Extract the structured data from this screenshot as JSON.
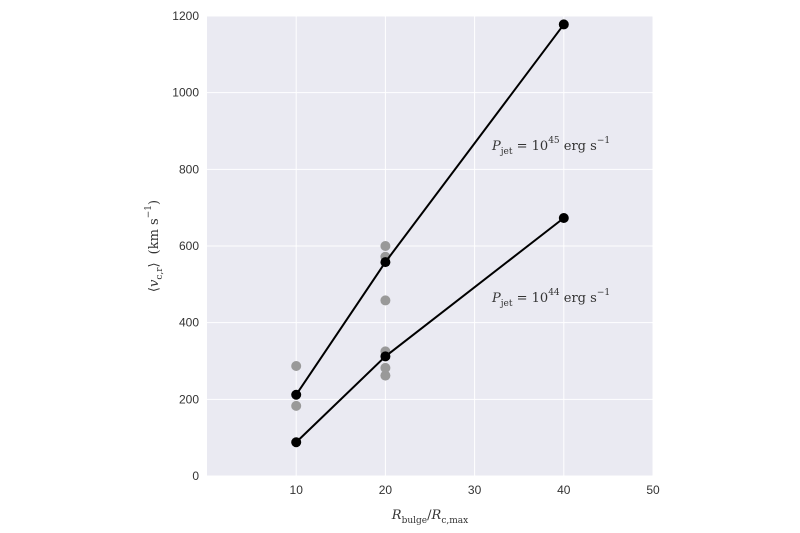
{
  "chart_data": {
    "type": "scatter",
    "xlabel": {
      "main": "R",
      "sub1": "bulge",
      "sep": "/",
      "main2": "R",
      "sub2": "c,max"
    },
    "ylabel": {
      "open": "⟨",
      "main": "v",
      "sub": "c,r",
      "close": "⟩",
      "units": "(km s",
      "units_sup": "−1",
      "units_close": ")"
    },
    "xlim": [
      0,
      50
    ],
    "ylim": [
      0,
      1200
    ],
    "xticks": [
      10,
      20,
      30,
      40,
      50
    ],
    "yticks": [
      0,
      200,
      400,
      600,
      800,
      1000,
      1200
    ],
    "grid": true,
    "series": [
      {
        "label": {
          "main": "P",
          "sub": "jet",
          "eq": " = 10",
          "exp": "45",
          "units": " erg s",
          "units_sup": "−1"
        },
        "fit_x": [
          10,
          20,
          40
        ],
        "fit_y": [
          212,
          558,
          1178
        ],
        "scatter_x": [
          10,
          10,
          20,
          20,
          20
        ],
        "scatter_y": [
          287,
          183,
          600,
          572,
          458
        ]
      },
      {
        "label": {
          "main": "P",
          "sub": "jet",
          "eq": " = 10",
          "exp": "44",
          "units": " erg s",
          "units_sup": "−1"
        },
        "fit_x": [
          10,
          20,
          40
        ],
        "fit_y": [
          88,
          312,
          673
        ],
        "scatter_x": [
          20,
          20,
          20
        ],
        "scatter_y": [
          325,
          282,
          262
        ]
      }
    ],
    "colors": {
      "background": "#eaeaf2",
      "grid": "#ffffff",
      "line": "#000000",
      "fit_point": "#000000",
      "scatter_point": "#999999"
    }
  }
}
